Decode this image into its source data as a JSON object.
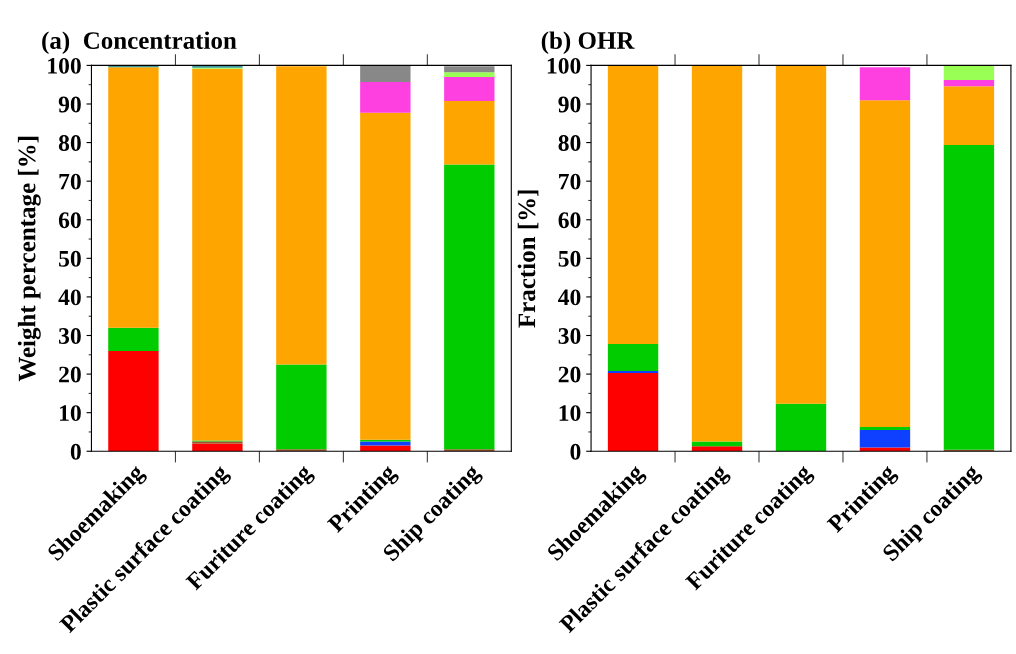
{
  "chart_data": [
    {
      "type": "bar",
      "stacked": true,
      "title": "(a)  Concentration",
      "ylabel": "Weight percentage [%]",
      "categories": [
        "Shoemaking",
        "Plastic surface coating",
        "Furiture coating",
        "Printing",
        "Ship coating"
      ],
      "ylim": [
        0,
        100
      ],
      "yticks": [
        0,
        10,
        20,
        30,
        40,
        50,
        60,
        70,
        80,
        90,
        100
      ],
      "grid": false,
      "legend": false,
      "series": [
        {
          "color": "#ff0000",
          "values": [
            26,
            2,
            0,
            1.5,
            0
          ]
        },
        {
          "color": "#a0522d",
          "values": [
            0,
            0.5,
            0.5,
            0,
            0.5
          ]
        },
        {
          "color": "#1040ff",
          "values": [
            0,
            0,
            0,
            1,
            0
          ]
        },
        {
          "color": "#00cc00",
          "values": [
            6,
            0.3,
            22,
            0.5,
            73.8
          ]
        },
        {
          "color": "#ffa500",
          "values": [
            67.5,
            96.3,
            77.3,
            84.7,
            16.5
          ]
        },
        {
          "color": "#ff40e0",
          "values": [
            0,
            0,
            0,
            8,
            6.2
          ]
        },
        {
          "color": "#99ff55",
          "values": [
            0,
            0.3,
            null,
            0,
            1.2
          ]
        },
        {
          "color": "#3a9a9a",
          "values": [
            0.5,
            0.7,
            0,
            0,
            0
          ]
        },
        {
          "color": "#888888",
          "values": [
            0,
            0,
            0,
            4.3,
            1.6
          ]
        }
      ]
    },
    {
      "type": "bar",
      "stacked": true,
      "title": "(b) OHR",
      "ylabel": "Fraction [%]",
      "categories": [
        "Shoemaking",
        "Plastic surface coating",
        "Furiture coating",
        "Printing",
        "Ship coating"
      ],
      "ylim": [
        0,
        100
      ],
      "yticks": [
        0,
        10,
        20,
        30,
        40,
        50,
        60,
        70,
        80,
        90,
        100
      ],
      "grid": false,
      "legend": false,
      "series": [
        {
          "color": "#ff0000",
          "values": [
            20.3,
            1.3,
            0,
            1,
            0
          ]
        },
        {
          "color": "#a0522d",
          "values": [
            0,
            0,
            0,
            0,
            0.4
          ]
        },
        {
          "color": "#1040ff",
          "values": [
            0.5,
            0,
            0,
            4.5,
            0
          ]
        },
        {
          "color": "#00cc00",
          "values": [
            7,
            1.2,
            12.3,
            0.8,
            79
          ]
        },
        {
          "color": "#ffa500",
          "values": [
            72.2,
            97.5,
            87.7,
            84.7,
            15.2
          ]
        },
        {
          "color": "#ff40e0",
          "values": [
            0,
            0,
            0,
            8.5,
            1.6
          ]
        },
        {
          "color": "#99ff55",
          "values": [
            0,
            0,
            0,
            0,
            3.8
          ]
        }
      ]
    }
  ]
}
